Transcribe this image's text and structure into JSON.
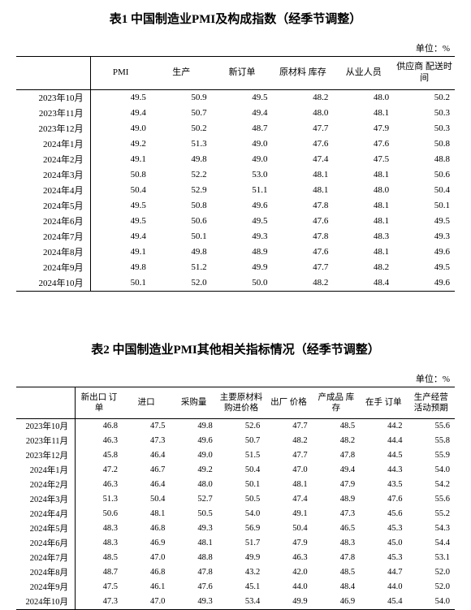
{
  "unit_text": "单位：%",
  "table1": {
    "title": "表1 中国制造业PMI及构成指数（经季节调整）",
    "headers": [
      "PMI",
      "生产",
      "新订单",
      "原材料\n库存",
      "从业人员",
      "供应商\n配送时间"
    ],
    "rows": [
      {
        "date": "2023年10月",
        "v": [
          "49.5",
          "50.9",
          "49.5",
          "48.2",
          "48.0",
          "50.2"
        ]
      },
      {
        "date": "2023年11月",
        "v": [
          "49.4",
          "50.7",
          "49.4",
          "48.0",
          "48.1",
          "50.3"
        ]
      },
      {
        "date": "2023年12月",
        "v": [
          "49.0",
          "50.2",
          "48.7",
          "47.7",
          "47.9",
          "50.3"
        ]
      },
      {
        "date": "2024年1月",
        "v": [
          "49.2",
          "51.3",
          "49.0",
          "47.6",
          "47.6",
          "50.8"
        ]
      },
      {
        "date": "2024年2月",
        "v": [
          "49.1",
          "49.8",
          "49.0",
          "47.4",
          "47.5",
          "48.8"
        ]
      },
      {
        "date": "2024年3月",
        "v": [
          "50.8",
          "52.2",
          "53.0",
          "48.1",
          "48.1",
          "50.6"
        ]
      },
      {
        "date": "2024年4月",
        "v": [
          "50.4",
          "52.9",
          "51.1",
          "48.1",
          "48.0",
          "50.4"
        ]
      },
      {
        "date": "2024年5月",
        "v": [
          "49.5",
          "50.8",
          "49.6",
          "47.8",
          "48.1",
          "50.1"
        ]
      },
      {
        "date": "2024年6月",
        "v": [
          "49.5",
          "50.6",
          "49.5",
          "47.6",
          "48.1",
          "49.5"
        ]
      },
      {
        "date": "2024年7月",
        "v": [
          "49.4",
          "50.1",
          "49.3",
          "47.8",
          "48.3",
          "49.3"
        ]
      },
      {
        "date": "2024年8月",
        "v": [
          "49.1",
          "49.8",
          "48.9",
          "47.6",
          "48.1",
          "49.6"
        ]
      },
      {
        "date": "2024年9月",
        "v": [
          "49.8",
          "51.2",
          "49.9",
          "47.7",
          "48.2",
          "49.5"
        ]
      },
      {
        "date": "2024年10月",
        "v": [
          "50.1",
          "52.0",
          "50.0",
          "48.2",
          "48.4",
          "49.6"
        ]
      }
    ]
  },
  "table2": {
    "title": "表2 中国制造业PMI其他相关指标情况（经季节调整）",
    "headers": [
      "新出口\n订单",
      "进口",
      "采购量",
      "主要原材料\n购进价格",
      "出厂\n价格",
      "产成品\n库存",
      "在手\n订单",
      "生产经营\n活动预期"
    ],
    "rows": [
      {
        "date": "2023年10月",
        "v": [
          "46.8",
          "47.5",
          "49.8",
          "52.6",
          "47.7",
          "48.5",
          "44.2",
          "55.6"
        ]
      },
      {
        "date": "2023年11月",
        "v": [
          "46.3",
          "47.3",
          "49.6",
          "50.7",
          "48.2",
          "48.2",
          "44.4",
          "55.8"
        ]
      },
      {
        "date": "2023年12月",
        "v": [
          "45.8",
          "46.4",
          "49.0",
          "51.5",
          "47.7",
          "47.8",
          "44.5",
          "55.9"
        ]
      },
      {
        "date": "2024年1月",
        "v": [
          "47.2",
          "46.7",
          "49.2",
          "50.4",
          "47.0",
          "49.4",
          "44.3",
          "54.0"
        ]
      },
      {
        "date": "2024年2月",
        "v": [
          "46.3",
          "46.4",
          "48.0",
          "50.1",
          "48.1",
          "47.9",
          "43.5",
          "54.2"
        ]
      },
      {
        "date": "2024年3月",
        "v": [
          "51.3",
          "50.4",
          "52.7",
          "50.5",
          "47.4",
          "48.9",
          "47.6",
          "55.6"
        ]
      },
      {
        "date": "2024年4月",
        "v": [
          "50.6",
          "48.1",
          "50.5",
          "54.0",
          "49.1",
          "47.3",
          "45.6",
          "55.2"
        ]
      },
      {
        "date": "2024年5月",
        "v": [
          "48.3",
          "46.8",
          "49.3",
          "56.9",
          "50.4",
          "46.5",
          "45.3",
          "54.3"
        ]
      },
      {
        "date": "2024年6月",
        "v": [
          "48.3",
          "46.9",
          "48.1",
          "51.7",
          "47.9",
          "48.3",
          "45.0",
          "54.4"
        ]
      },
      {
        "date": "2024年7月",
        "v": [
          "48.5",
          "47.0",
          "48.8",
          "49.9",
          "46.3",
          "47.8",
          "45.3",
          "53.1"
        ]
      },
      {
        "date": "2024年8月",
        "v": [
          "48.7",
          "46.8",
          "47.8",
          "43.2",
          "42.0",
          "48.5",
          "44.7",
          "52.0"
        ]
      },
      {
        "date": "2024年9月",
        "v": [
          "47.5",
          "46.1",
          "47.6",
          "45.1",
          "44.0",
          "48.4",
          "44.0",
          "52.0"
        ]
      },
      {
        "date": "2024年10月",
        "v": [
          "47.3",
          "47.0",
          "49.3",
          "53.4",
          "49.9",
          "46.9",
          "45.4",
          "54.0"
        ]
      }
    ]
  }
}
